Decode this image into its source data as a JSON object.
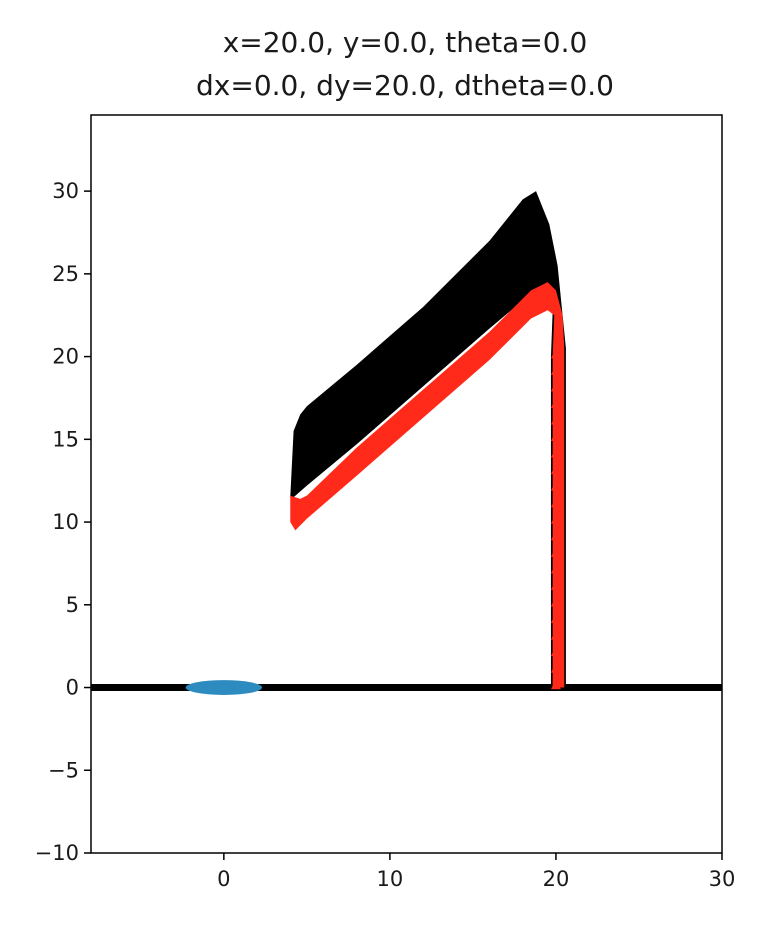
{
  "chart_data": {
    "type": "line",
    "title_lines": [
      "x=20.0, y=0.0, theta=0.0",
      "dx=0.0, dy=20.0, dtheta=0.0"
    ],
    "xlabel": "",
    "ylabel": "",
    "xlim": [
      -8.0,
      30.0
    ],
    "ylim": [
      -10.0,
      34.6
    ],
    "xticks": [
      0,
      10,
      20,
      30
    ],
    "yticks": [
      -10,
      -5,
      0,
      5,
      10,
      15,
      20,
      25,
      30
    ],
    "grid": false,
    "legend": "none",
    "series": [
      {
        "role": "ground",
        "color": "#000000",
        "x": [
          -8.0,
          30.0
        ],
        "y": [
          0.0,
          0.0
        ]
      },
      {
        "role": "black-trajectory-upper",
        "color": "#000000",
        "x": [
          4.0,
          4.2,
          4.6,
          5.0,
          8.0,
          12.0,
          16.0,
          18.0,
          18.8,
          19.6,
          20.1,
          20.4,
          20.6,
          20.6,
          20.3
        ],
        "y": [
          11.5,
          15.5,
          16.5,
          17.0,
          19.5,
          23.0,
          27.0,
          29.5,
          30.0,
          28.0,
          25.5,
          22.5,
          20.5,
          0.0,
          0.0
        ]
      },
      {
        "role": "black-trajectory-lower",
        "color": "#000000",
        "x": [
          19.7,
          19.7,
          19.8,
          19.5,
          18.5,
          16.0,
          12.0,
          8.0,
          5.0,
          4.2
        ],
        "y": [
          0.0,
          20.0,
          22.7,
          23.7,
          23.8,
          21.7,
          18.2,
          14.7,
          12.2,
          11.5
        ]
      },
      {
        "role": "red-trajectory-upper",
        "color": "#ff2a1a",
        "x": [
          4.0,
          4.6,
          5.0,
          8.0,
          12.0,
          16.0,
          18.5,
          19.5,
          20.0,
          20.4,
          20.5,
          20.5,
          20.2
        ],
        "y": [
          11.6,
          11.4,
          11.6,
          14.5,
          18.0,
          21.5,
          24.0,
          24.5,
          24.0,
          22.5,
          20.5,
          0.0,
          0.0
        ]
      },
      {
        "role": "red-trajectory-lower",
        "color": "#ff2a1a",
        "x": [
          19.8,
          19.8,
          19.9,
          19.5,
          18.5,
          16.0,
          12.0,
          8.0,
          5.0,
          4.3,
          4.0,
          4.0
        ],
        "y": [
          0.0,
          20.0,
          22.5,
          22.8,
          22.3,
          19.8,
          16.3,
          12.8,
          10.2,
          9.5,
          10.0,
          11.6
        ]
      },
      {
        "role": "red-triangle-markers",
        "color": "#ff2a1a",
        "x": [
          20.0,
          20.0,
          20.0,
          20.0,
          20.0,
          20.0,
          20.0,
          20.0,
          20.0,
          20.0,
          20.0,
          20.0,
          20.0,
          20.0,
          20.0,
          20.0,
          20.0,
          20.0,
          20.0,
          20.0,
          20.0
        ],
        "y": [
          0.2,
          1.2,
          2.2,
          3.2,
          4.2,
          5.2,
          6.2,
          7.2,
          8.2,
          9.2,
          10.2,
          11.2,
          12.2,
          13.2,
          14.2,
          15.2,
          16.2,
          17.2,
          18.2,
          19.2,
          20.2
        ]
      },
      {
        "role": "blue-ellipse",
        "color": "#2e8bc0",
        "center": [
          0.0,
          0.0
        ],
        "half_width": 2.3,
        "half_height": 0.45
      }
    ]
  }
}
